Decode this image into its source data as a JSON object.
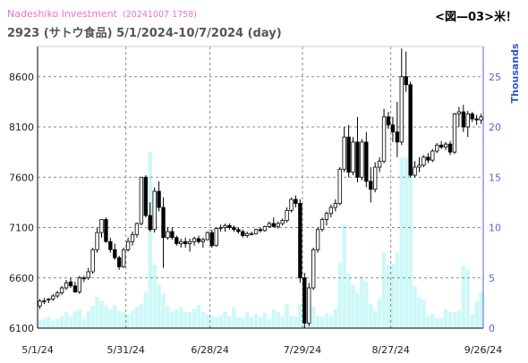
{
  "header": {
    "brand": "Nadeshiko Investment",
    "stamp": "(20241007 1758)",
    "ticker_line": "2923 (サトウ食品) 5/1/2024-10/7/2024 (day)",
    "figure_label": "<図—03>米！"
  },
  "colors": {
    "volume_fill": "#cdf8f8",
    "up_fill": "#ffffff",
    "down_fill": "#000000",
    "candle_stroke": "#000000",
    "grid": "#8a8a8a",
    "right_axis": "#5566cc",
    "right_label": "#3355cc"
  },
  "chart_data": {
    "type": "candlestick",
    "title": "2923 (サトウ食品) 5/1/2024-10/7/2024 (day)",
    "y_left": {
      "label": "",
      "range": [
        6100,
        8900
      ],
      "ticks": [
        "6100",
        "6600",
        "7100",
        "7600",
        "8100",
        "8600"
      ]
    },
    "y_right": {
      "label": "Thousands",
      "range": [
        0,
        28
      ],
      "ticks": [
        "0",
        "5",
        "10",
        "15",
        "20",
        "25"
      ]
    },
    "x_ticks": [
      "5/1/24",
      "5/31/24",
      "6/28/24",
      "7/29/24",
      "8/27/24",
      "9/26/24"
    ],
    "grid": true,
    "candles": [
      {
        "o": 6320,
        "h": 6390,
        "l": 6290,
        "c": 6370
      },
      {
        "o": 6370,
        "h": 6400,
        "l": 6340,
        "c": 6370
      },
      {
        "o": 6380,
        "h": 6400,
        "l": 6350,
        "c": 6390
      },
      {
        "o": 6390,
        "h": 6440,
        "l": 6370,
        "c": 6420
      },
      {
        "o": 6420,
        "h": 6470,
        "l": 6400,
        "c": 6450
      },
      {
        "o": 6450,
        "h": 6520,
        "l": 6430,
        "c": 6500
      },
      {
        "o": 6500,
        "h": 6580,
        "l": 6480,
        "c": 6550
      },
      {
        "o": 6560,
        "h": 6600,
        "l": 6500,
        "c": 6520
      },
      {
        "o": 6520,
        "h": 6560,
        "l": 6450,
        "c": 6460
      },
      {
        "o": 6460,
        "h": 6620,
        "l": 6440,
        "c": 6600
      },
      {
        "o": 6600,
        "h": 6620,
        "l": 6560,
        "c": 6590
      },
      {
        "o": 6600,
        "h": 6700,
        "l": 6580,
        "c": 6660
      },
      {
        "o": 6660,
        "h": 6900,
        "l": 6640,
        "c": 6880
      },
      {
        "o": 6880,
        "h": 7100,
        "l": 6850,
        "c": 7050
      },
      {
        "o": 7050,
        "h": 7180,
        "l": 7000,
        "c": 7180
      },
      {
        "o": 7180,
        "h": 7200,
        "l": 6950,
        "c": 6960
      },
      {
        "o": 6960,
        "h": 7000,
        "l": 6850,
        "c": 6880
      },
      {
        "o": 6880,
        "h": 6940,
        "l": 6780,
        "c": 6800
      },
      {
        "o": 6800,
        "h": 6820,
        "l": 6680,
        "c": 6710
      },
      {
        "o": 6710,
        "h": 6900,
        "l": 6700,
        "c": 6880
      },
      {
        "o": 6880,
        "h": 7000,
        "l": 6860,
        "c": 6960
      },
      {
        "o": 6960,
        "h": 7060,
        "l": 6920,
        "c": 7030
      },
      {
        "o": 7030,
        "h": 7150,
        "l": 7000,
        "c": 7140
      },
      {
        "o": 7140,
        "h": 7600,
        "l": 7120,
        "c": 7600
      },
      {
        "o": 7600,
        "h": 7620,
        "l": 7200,
        "c": 7220
      },
      {
        "o": 7220,
        "h": 7350,
        "l": 7060,
        "c": 7080
      },
      {
        "o": 7080,
        "h": 7500,
        "l": 7050,
        "c": 7460
      },
      {
        "o": 7460,
        "h": 7560,
        "l": 7260,
        "c": 7300
      },
      {
        "o": 7300,
        "h": 7400,
        "l": 6700,
        "c": 7000
      },
      {
        "o": 7000,
        "h": 7100,
        "l": 6980,
        "c": 7060
      },
      {
        "o": 7060,
        "h": 7100,
        "l": 6980,
        "c": 7000
      },
      {
        "o": 7000,
        "h": 7020,
        "l": 6920,
        "c": 6940
      },
      {
        "o": 6940,
        "h": 6990,
        "l": 6900,
        "c": 6960
      },
      {
        "o": 6960,
        "h": 7000,
        "l": 6900,
        "c": 6940
      },
      {
        "o": 6940,
        "h": 6990,
        "l": 6860,
        "c": 6960
      },
      {
        "o": 6960,
        "h": 7010,
        "l": 6920,
        "c": 6990
      },
      {
        "o": 6990,
        "h": 7020,
        "l": 6940,
        "c": 6960
      },
      {
        "o": 6960,
        "h": 7000,
        "l": 6900,
        "c": 6980
      },
      {
        "o": 6980,
        "h": 7060,
        "l": 6970,
        "c": 7050
      },
      {
        "o": 7050,
        "h": 7080,
        "l": 6900,
        "c": 6920
      },
      {
        "o": 6920,
        "h": 7100,
        "l": 6910,
        "c": 7090
      },
      {
        "o": 7090,
        "h": 7130,
        "l": 7060,
        "c": 7100
      },
      {
        "o": 7100,
        "h": 7140,
        "l": 7060,
        "c": 7120
      },
      {
        "o": 7120,
        "h": 7140,
        "l": 7080,
        "c": 7100
      },
      {
        "o": 7100,
        "h": 7120,
        "l": 7060,
        "c": 7080
      },
      {
        "o": 7080,
        "h": 7100,
        "l": 7040,
        "c": 7060
      },
      {
        "o": 7060,
        "h": 7080,
        "l": 7000,
        "c": 7020
      },
      {
        "o": 7020,
        "h": 7060,
        "l": 7000,
        "c": 7040
      },
      {
        "o": 7040,
        "h": 7060,
        "l": 7020,
        "c": 7040
      },
      {
        "o": 7040,
        "h": 7090,
        "l": 7030,
        "c": 7080
      },
      {
        "o": 7080,
        "h": 7100,
        "l": 7050,
        "c": 7070
      },
      {
        "o": 7070,
        "h": 7120,
        "l": 7060,
        "c": 7110
      },
      {
        "o": 7110,
        "h": 7160,
        "l": 7100,
        "c": 7140
      },
      {
        "o": 7140,
        "h": 7200,
        "l": 7100,
        "c": 7110
      },
      {
        "o": 7110,
        "h": 7160,
        "l": 7090,
        "c": 7140
      },
      {
        "o": 7140,
        "h": 7190,
        "l": 7120,
        "c": 7170
      },
      {
        "o": 7170,
        "h": 7300,
        "l": 7150,
        "c": 7270
      },
      {
        "o": 7270,
        "h": 7400,
        "l": 7250,
        "c": 7380
      },
      {
        "o": 7380,
        "h": 7420,
        "l": 7300,
        "c": 7340
      },
      {
        "o": 7340,
        "h": 7380,
        "l": 6550,
        "c": 6600
      },
      {
        "o": 6600,
        "h": 6650,
        "l": 6100,
        "c": 6150
      },
      {
        "o": 6150,
        "h": 6550,
        "l": 6120,
        "c": 6500
      },
      {
        "o": 6500,
        "h": 6900,
        "l": 6480,
        "c": 6880
      },
      {
        "o": 6880,
        "h": 7100,
        "l": 6850,
        "c": 7080
      },
      {
        "o": 7080,
        "h": 7200,
        "l": 7060,
        "c": 7180
      },
      {
        "o": 7180,
        "h": 7260,
        "l": 7120,
        "c": 7240
      },
      {
        "o": 7240,
        "h": 7330,
        "l": 7200,
        "c": 7300
      },
      {
        "o": 7300,
        "h": 7380,
        "l": 7260,
        "c": 7340
      },
      {
        "o": 7340,
        "h": 7700,
        "l": 7320,
        "c": 7680
      },
      {
        "o": 7680,
        "h": 8100,
        "l": 7650,
        "c": 8000
      },
      {
        "o": 8000,
        "h": 8120,
        "l": 7600,
        "c": 7650
      },
      {
        "o": 7650,
        "h": 8000,
        "l": 7620,
        "c": 7950
      },
      {
        "o": 7950,
        "h": 8200,
        "l": 7550,
        "c": 7600
      },
      {
        "o": 7600,
        "h": 7980,
        "l": 7570,
        "c": 7950
      },
      {
        "o": 7950,
        "h": 8050,
        "l": 7500,
        "c": 7560
      },
      {
        "o": 7560,
        "h": 7700,
        "l": 7350,
        "c": 7480
      },
      {
        "o": 7480,
        "h": 7750,
        "l": 7450,
        "c": 7700
      },
      {
        "o": 7700,
        "h": 7800,
        "l": 7650,
        "c": 7760
      },
      {
        "o": 7760,
        "h": 8280,
        "l": 7740,
        "c": 8200
      },
      {
        "o": 8200,
        "h": 8250,
        "l": 8080,
        "c": 8120
      },
      {
        "o": 8120,
        "h": 8200,
        "l": 7950,
        "c": 8050
      },
      {
        "o": 8050,
        "h": 8350,
        "l": 7800,
        "c": 7950
      },
      {
        "o": 7950,
        "h": 8880,
        "l": 7920,
        "c": 8600
      },
      {
        "o": 8600,
        "h": 8850,
        "l": 8450,
        "c": 8520
      },
      {
        "o": 8520,
        "h": 8550,
        "l": 7600,
        "c": 7620
      },
      {
        "o": 7620,
        "h": 7760,
        "l": 7600,
        "c": 7700
      },
      {
        "o": 7700,
        "h": 7800,
        "l": 7650,
        "c": 7720
      },
      {
        "o": 7720,
        "h": 7820,
        "l": 7700,
        "c": 7800
      },
      {
        "o": 7800,
        "h": 7840,
        "l": 7740,
        "c": 7770
      },
      {
        "o": 7770,
        "h": 7880,
        "l": 7750,
        "c": 7860
      },
      {
        "o": 7860,
        "h": 7940,
        "l": 7840,
        "c": 7920
      },
      {
        "o": 7920,
        "h": 7960,
        "l": 7880,
        "c": 7900
      },
      {
        "o": 7900,
        "h": 7950,
        "l": 7870,
        "c": 7930
      },
      {
        "o": 7930,
        "h": 7960,
        "l": 7820,
        "c": 7850
      },
      {
        "o": 7850,
        "h": 8240,
        "l": 7830,
        "c": 8230
      },
      {
        "o": 8230,
        "h": 8300,
        "l": 8100,
        "c": 8250
      },
      {
        "o": 8250,
        "h": 8320,
        "l": 8050,
        "c": 8100
      },
      {
        "o": 8100,
        "h": 8260,
        "l": 8000,
        "c": 8230
      },
      {
        "o": 8230,
        "h": 8250,
        "l": 8150,
        "c": 8180
      },
      {
        "o": 8180,
        "h": 8220,
        "l": 8120,
        "c": 8170
      },
      {
        "o": 8170,
        "h": 8230,
        "l": 8130,
        "c": 8200
      }
    ],
    "volume": [
      0.8,
      0.9,
      1.1,
      0.7,
      0.9,
      1.2,
      1.6,
      1.1,
      1.7,
      1.9,
      0.9,
      1.7,
      2.2,
      3.1,
      2.7,
      2.2,
      1.9,
      2.3,
      1.7,
      1.6,
      1.4,
      1.7,
      2.1,
      2.4,
      3.6,
      17.5,
      6.3,
      4.4,
      3.4,
      2.2,
      1.7,
      1.9,
      2.1,
      1.6,
      1.6,
      1.9,
      2.3,
      1.6,
      1.4,
      1.2,
      1.1,
      1.3,
      1.6,
      1.2,
      2.1,
      1.1,
      1.0,
      1.6,
      1.1,
      1.4,
      1.1,
      1.5,
      0.9,
      1.9,
      1.6,
      1.2,
      2.4,
      1.3,
      1.2,
      2.4,
      1.4,
      2.4,
      2.1,
      1.2,
      1.1,
      1.5,
      1.2,
      1.9,
      6.5,
      10.3,
      5.4,
      4.3,
      3.5,
      5.2,
      4.6,
      2.4,
      1.7,
      2.9,
      7.6,
      6.3,
      6.4,
      7.5,
      17.0,
      17.0,
      15.5,
      4.2,
      3.1,
      2.8,
      1.2,
      1.4,
      1.0,
      1.0,
      1.9,
      1.6,
      1.6,
      1.8,
      6.2,
      5.8,
      1.4,
      2.7,
      3.6
    ]
  }
}
